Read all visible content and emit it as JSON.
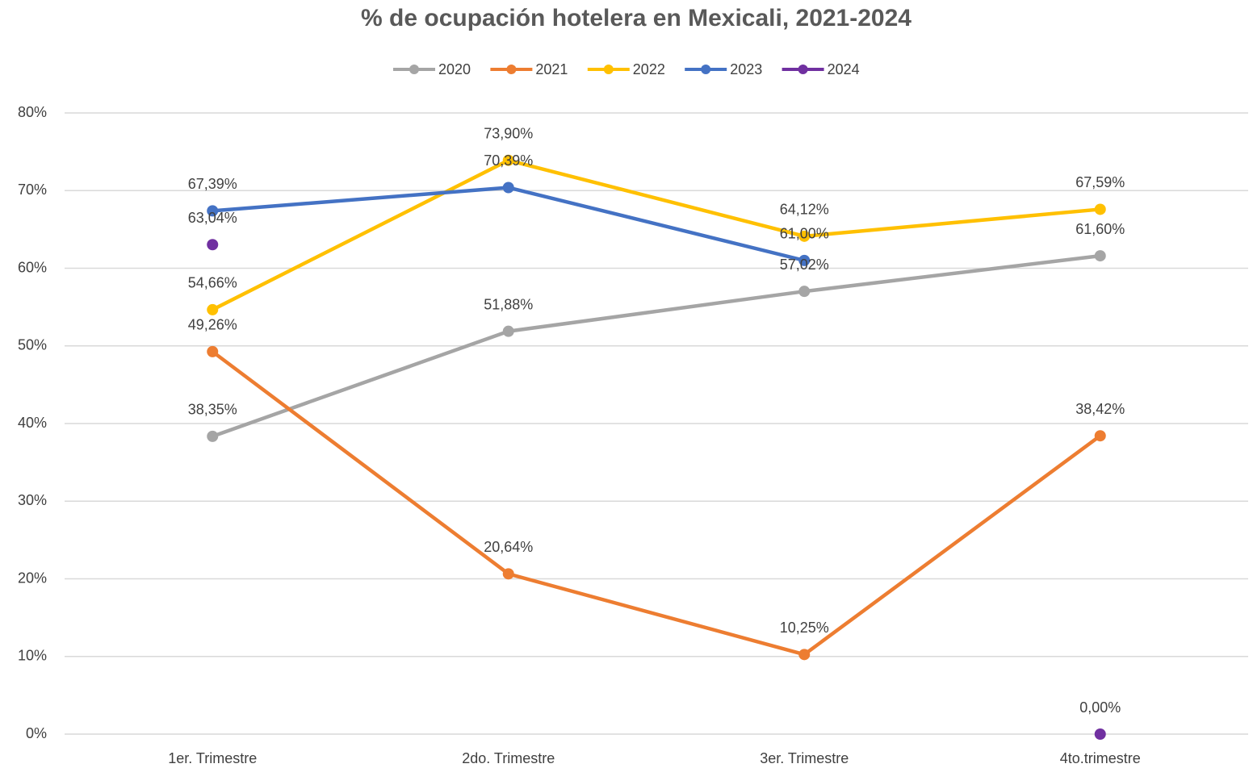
{
  "chart_data": {
    "type": "line",
    "title": "% de ocupación hotelera en Mexicali, 2021-2024",
    "categories": [
      "1er. Trimestre",
      "2do. Trimestre",
      "3er. Trimestre",
      "4to.trimestre"
    ],
    "series": [
      {
        "name": "2020",
        "color": "#a5a5a5",
        "values": [
          38.35,
          51.88,
          57.02,
          61.6
        ],
        "value_labels": [
          "38,35%",
          "51,88%",
          "57,02%",
          "61,60%"
        ]
      },
      {
        "name": "2021",
        "color": "#ed7d31",
        "values": [
          49.26,
          20.64,
          10.25,
          38.42
        ],
        "value_labels": [
          "49,26%",
          "20,64%",
          "10,25%",
          "38,42%"
        ]
      },
      {
        "name": "2022",
        "color": "#ffc000",
        "values": [
          54.66,
          73.9,
          64.12,
          67.59
        ],
        "value_labels": [
          "54,66%",
          "73,90%",
          "64,12%",
          "67,59%"
        ]
      },
      {
        "name": "2023",
        "color": "#4472c4",
        "values": [
          67.39,
          70.39,
          61.0,
          null
        ],
        "value_labels": [
          "67,39%",
          "70,39%",
          "61,00%",
          null
        ]
      },
      {
        "name": "2024",
        "color": "#7030a0",
        "values": [
          63.04,
          null,
          null,
          0.0
        ],
        "value_labels": [
          "63,04%",
          null,
          null,
          "0,00%"
        ]
      }
    ],
    "ylim": [
      0,
      80
    ],
    "yticks": [
      {
        "value": 0,
        "label": "0%"
      },
      {
        "value": 10,
        "label": "10%"
      },
      {
        "value": 20,
        "label": "20%"
      },
      {
        "value": 30,
        "label": "30%"
      },
      {
        "value": 40,
        "label": "40%"
      },
      {
        "value": 50,
        "label": "50%"
      },
      {
        "value": 60,
        "label": "60%"
      },
      {
        "value": 70,
        "label": "70%"
      },
      {
        "value": 80,
        "label": "80%"
      }
    ],
    "grid": true,
    "legend": "top"
  }
}
